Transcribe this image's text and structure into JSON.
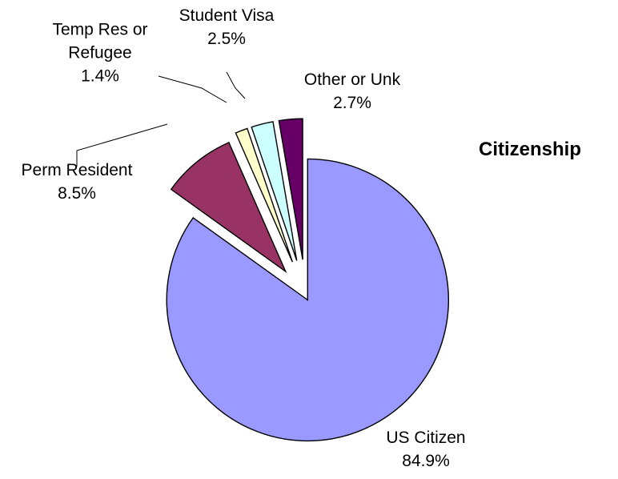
{
  "chart_data": {
    "type": "pie",
    "title": "Citizenship",
    "exploded": true,
    "slices": [
      {
        "label": "US Citizen",
        "pct_label": "84.9%",
        "value": 84.9,
        "color": "#9999ff"
      },
      {
        "label": "Perm Resident",
        "pct_label": "8.5%",
        "value": 8.5,
        "color": "#993366"
      },
      {
        "label": "Temp Res or Refugee",
        "label_lines": [
          "Temp Res or",
          "Refugee"
        ],
        "pct_label": "1.4%",
        "value": 1.4,
        "color": "#ffffcc"
      },
      {
        "label": "Student Visa",
        "pct_label": "2.5%",
        "value": 2.5,
        "color": "#ccffff"
      },
      {
        "label": "Other or Unk",
        "pct_label": "2.7%",
        "value": 2.7,
        "color": "#660066"
      }
    ]
  }
}
